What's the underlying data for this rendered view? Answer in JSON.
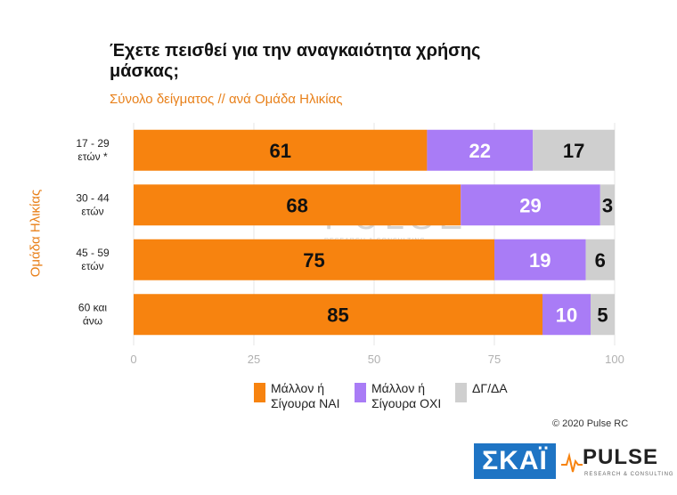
{
  "chart_data": {
    "type": "bar",
    "orientation": "horizontal",
    "stacked": true,
    "title": "Έχετε πεισθεί για την αναγκαιότητα χρήσης μάσκας;",
    "subtitle": "Σύνολο δείγματος // ανά Ομάδα Ηλικίας",
    "ylabel": "Ομάδα Ηλικίας",
    "xlabel": "",
    "xlim": [
      0,
      100
    ],
    "x_ticks": [
      "0",
      "25",
      "50",
      "75",
      "100"
    ],
    "grid": true,
    "legend_position": "bottom",
    "categories": [
      [
        "17 - 29",
        "ετών *"
      ],
      [
        "30 - 44",
        "ετών"
      ],
      [
        "45 - 59",
        "ετών"
      ],
      [
        "60 και",
        "άνω"
      ]
    ],
    "series": [
      {
        "name": "Μάλλον ή Σίγουρα ΝΑΙ",
        "legend_lines": [
          "Μάλλον ή",
          "Σίγουρα ΝΑΙ"
        ],
        "color": "#f7830f",
        "values": [
          61,
          68,
          75,
          85
        ]
      },
      {
        "name": "Μάλλον ή Σίγουρα ΟΧΙ",
        "legend_lines": [
          "Μάλλον ή",
          "Σίγουρα ΟΧΙ"
        ],
        "color": "#a97cf6",
        "values": [
          22,
          29,
          19,
          10
        ]
      },
      {
        "name": "ΔΓ/ΔΑ",
        "legend_lines": [
          "ΔΓ/ΔΑ"
        ],
        "color": "#cfcfcf",
        "values": [
          17,
          3,
          6,
          5
        ]
      }
    ]
  },
  "colors": {
    "label_yes": "#111111",
    "label_other": "#ffffff",
    "label_dk": "#111111",
    "grid": "#e6e6e6",
    "accent": "#e8801a"
  },
  "footer": {
    "copyright": "© 2020 Pulse RC",
    "skai_logo": "ΣΚΑΪ",
    "pulse_logo": "PULSE",
    "pulse_tagline": "RESEARCH & CONSULTING"
  },
  "watermark": {
    "word": "PULSE",
    "tagline": "RESEARCH & CONSULTING"
  }
}
